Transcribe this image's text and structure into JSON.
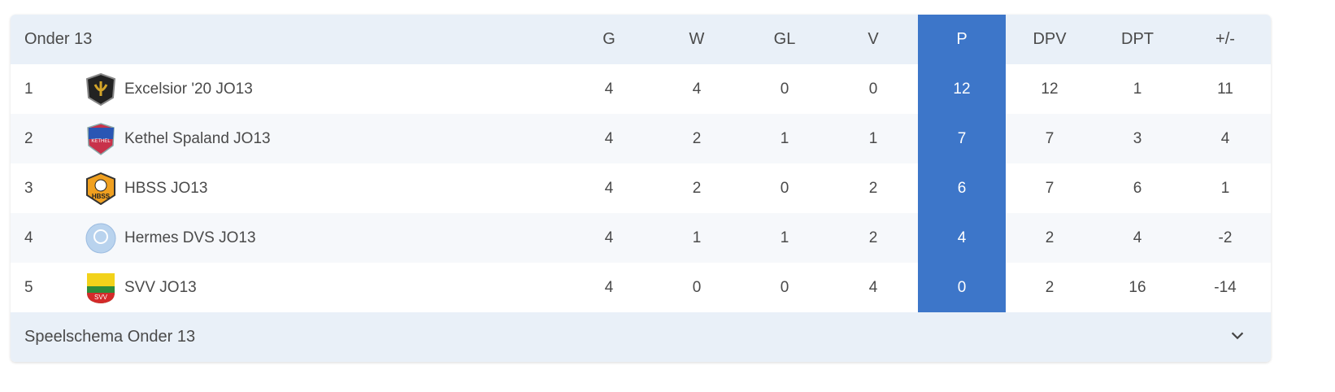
{
  "header": {
    "title": "Onder 13",
    "columns": [
      "G",
      "W",
      "GL",
      "V",
      "P",
      "DPV",
      "DPT",
      "+/-"
    ]
  },
  "rows": [
    {
      "rank": "1",
      "team": "Excelsior '20 JO13",
      "logo": "excelsior-20-crest",
      "values": [
        "4",
        "4",
        "0",
        "0",
        "12",
        "12",
        "1",
        "11"
      ]
    },
    {
      "rank": "2",
      "team": "Kethel Spaland JO13",
      "logo": "kethel-spaland-crest",
      "values": [
        "4",
        "2",
        "1",
        "1",
        "7",
        "7",
        "3",
        "4"
      ]
    },
    {
      "rank": "3",
      "team": "HBSS JO13",
      "logo": "hbss-crest",
      "values": [
        "4",
        "2",
        "0",
        "2",
        "6",
        "7",
        "6",
        "1"
      ]
    },
    {
      "rank": "4",
      "team": "Hermes DVS JO13",
      "logo": "hermes-dvs-crest",
      "values": [
        "4",
        "1",
        "1",
        "2",
        "4",
        "2",
        "4",
        "-2"
      ]
    },
    {
      "rank": "5",
      "team": "SVV JO13",
      "logo": "svv-crest",
      "values": [
        "4",
        "0",
        "0",
        "4",
        "0",
        "2",
        "16",
        "-14"
      ]
    }
  ],
  "footer": {
    "label": "Speelschema Onder 13",
    "icon": "chevron-down-icon"
  },
  "colors": {
    "highlight": "#3d76c9",
    "header_bg": "#e9f0f8"
  }
}
